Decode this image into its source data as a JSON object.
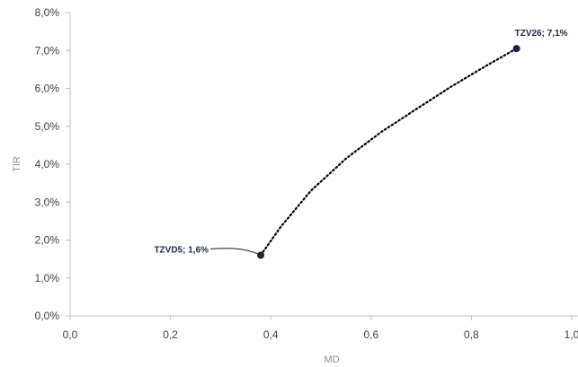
{
  "chart_data": {
    "type": "scatter",
    "title": "",
    "xlabel": "MD",
    "ylabel": "TIR",
    "xlim": [
      0.0,
      1.0
    ],
    "ylim": [
      0.0,
      8.0
    ],
    "x_ticks": [
      "0,0",
      "0,2",
      "0,4",
      "0,6",
      "0,8",
      "1,0"
    ],
    "y_ticks": [
      "0,0%",
      "1,0%",
      "2,0%",
      "3,0%",
      "4,0%",
      "5,0%",
      "6,0%",
      "7,0%",
      "8,0%"
    ],
    "grid": false,
    "legend": "none",
    "series": [
      {
        "points": [
          {
            "label": "TZVD5; 1,6%",
            "x": 0.38,
            "y": 1.6
          },
          {
            "label": "TZV26; 7,1%",
            "x": 0.89,
            "y": 7.05
          }
        ]
      }
    ],
    "trendline": {
      "style": "dotted",
      "color": "#000000",
      "points": [
        {
          "x": 0.38,
          "y": 1.6
        },
        {
          "x": 0.42,
          "y": 2.35
        },
        {
          "x": 0.48,
          "y": 3.3
        },
        {
          "x": 0.55,
          "y": 4.15
        },
        {
          "x": 0.62,
          "y": 4.85
        },
        {
          "x": 0.69,
          "y": 5.45
        },
        {
          "x": 0.76,
          "y": 6.05
        },
        {
          "x": 0.83,
          "y": 6.6
        },
        {
          "x": 0.89,
          "y": 7.05
        }
      ]
    },
    "colors": {
      "point": "#1a2341",
      "label": "#1f2a44",
      "axis": "#bfbfbf",
      "tick_text": "#404040",
      "axis_title": "#8c8c8c"
    }
  }
}
